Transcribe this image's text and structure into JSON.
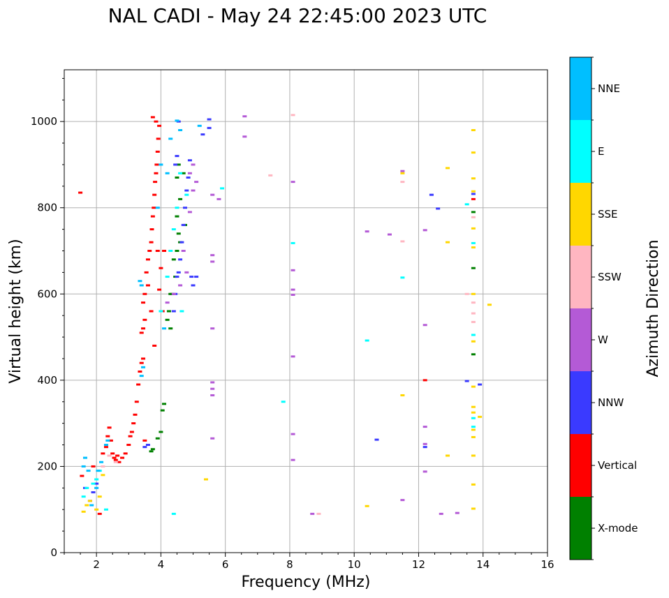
{
  "chart_data": {
    "type": "scatter",
    "title": "NAL CADI - May 24 22:45:00 2023 UTC",
    "xlabel": "Frequency (MHz)",
    "ylabel": "Virtual height (km)",
    "xlim": [
      1,
      16
    ],
    "ylim": [
      0,
      1120
    ],
    "xticks": [
      2,
      4,
      6,
      8,
      10,
      12,
      14,
      16
    ],
    "xtick_labels": [
      "2",
      "4",
      "6",
      "8",
      "10",
      "12",
      "14",
      "16"
    ],
    "yticks": [
      0,
      200,
      400,
      600,
      800,
      1000
    ],
    "ytick_labels": [
      "0",
      "200",
      "400",
      "600",
      "800",
      "1000"
    ],
    "grid": true,
    "colorbar": {
      "label": "Azimuth Direction",
      "categories": [
        {
          "name": "X-mode",
          "color": "#008000"
        },
        {
          "name": "Vertical",
          "color": "#ff0000"
        },
        {
          "name": "NNW",
          "color": "#3a3aff"
        },
        {
          "name": "W",
          "color": "#b45ad6"
        },
        {
          "name": "SSW",
          "color": "#ffb6c1"
        },
        {
          "name": "SSE",
          "color": "#ffd700"
        },
        {
          "name": "E",
          "color": "#00ffff"
        },
        {
          "name": "NNE",
          "color": "#00bfff"
        }
      ]
    },
    "series": [
      {
        "name": "X-mode",
        "points": [
          [
            4.0,
            280
          ],
          [
            4.05,
            330
          ],
          [
            4.1,
            345
          ],
          [
            3.9,
            265
          ],
          [
            3.75,
            240
          ],
          [
            3.7,
            235
          ],
          [
            4.3,
            520
          ],
          [
            4.2,
            540
          ],
          [
            4.25,
            560
          ],
          [
            4.35,
            600
          ],
          [
            4.45,
            640
          ],
          [
            4.5,
            700
          ],
          [
            4.55,
            740
          ],
          [
            4.5,
            780
          ],
          [
            4.6,
            720
          ],
          [
            4.4,
            680
          ],
          [
            4.7,
            880
          ],
          [
            4.75,
            760
          ],
          [
            4.6,
            820
          ],
          [
            4.5,
            870
          ],
          [
            4.55,
            900
          ],
          [
            4.3,
            600
          ],
          [
            13.7,
            790
          ],
          [
            13.7,
            660
          ],
          [
            13.7,
            460
          ]
        ]
      },
      {
        "name": "Vertical",
        "points": [
          [
            1.5,
            835
          ],
          [
            1.55,
            178
          ],
          [
            1.9,
            200
          ],
          [
            2.1,
            90
          ],
          [
            2.2,
            230
          ],
          [
            2.3,
            245
          ],
          [
            2.35,
            270
          ],
          [
            2.4,
            290
          ],
          [
            2.45,
            260
          ],
          [
            2.5,
            230
          ],
          [
            2.55,
            220
          ],
          [
            2.6,
            215
          ],
          [
            2.65,
            225
          ],
          [
            2.7,
            210
          ],
          [
            2.8,
            220
          ],
          [
            2.9,
            230
          ],
          [
            3.0,
            250
          ],
          [
            3.05,
            270
          ],
          [
            3.1,
            280
          ],
          [
            3.15,
            300
          ],
          [
            3.2,
            320
          ],
          [
            3.25,
            350
          ],
          [
            3.3,
            390
          ],
          [
            3.35,
            420
          ],
          [
            3.4,
            440
          ],
          [
            3.45,
            450
          ],
          [
            3.5,
            260
          ],
          [
            3.4,
            510
          ],
          [
            3.45,
            520
          ],
          [
            3.5,
            540
          ],
          [
            3.45,
            580
          ],
          [
            3.5,
            600
          ],
          [
            3.55,
            650
          ],
          [
            3.6,
            680
          ],
          [
            3.65,
            700
          ],
          [
            3.7,
            720
          ],
          [
            3.72,
            750
          ],
          [
            3.75,
            780
          ],
          [
            3.78,
            800
          ],
          [
            3.8,
            830
          ],
          [
            3.82,
            860
          ],
          [
            3.85,
            880
          ],
          [
            3.87,
            900
          ],
          [
            3.9,
            930
          ],
          [
            3.92,
            960
          ],
          [
            3.95,
            990
          ],
          [
            3.8,
            480
          ],
          [
            3.7,
            560
          ],
          [
            3.6,
            620
          ],
          [
            3.9,
            700
          ],
          [
            3.95,
            610
          ],
          [
            4.0,
            660
          ],
          [
            4.05,
            560
          ],
          [
            4.1,
            700
          ],
          [
            3.75,
            1010
          ],
          [
            3.85,
            1000
          ],
          [
            12.2,
            400
          ],
          [
            13.7,
            820
          ]
        ]
      },
      {
        "name": "NNW",
        "points": [
          [
            1.65,
            150
          ],
          [
            1.8,
            120
          ],
          [
            1.9,
            140
          ],
          [
            2.0,
            160
          ],
          [
            3.5,
            245
          ],
          [
            3.6,
            250
          ],
          [
            4.4,
            560
          ],
          [
            4.45,
            600
          ],
          [
            4.5,
            640
          ],
          [
            4.55,
            650
          ],
          [
            4.6,
            680
          ],
          [
            4.65,
            720
          ],
          [
            4.7,
            760
          ],
          [
            4.75,
            800
          ],
          [
            4.8,
            840
          ],
          [
            4.85,
            870
          ],
          [
            4.9,
            910
          ],
          [
            4.95,
            640
          ],
          [
            5.0,
            620
          ],
          [
            5.1,
            640
          ],
          [
            4.45,
            900
          ],
          [
            4.5,
            920
          ],
          [
            4.55,
            1000
          ],
          [
            5.5,
            1005
          ],
          [
            5.5,
            985
          ],
          [
            5.3,
            970
          ],
          [
            10.7,
            262
          ],
          [
            12.2,
            245
          ],
          [
            12.4,
            830
          ],
          [
            12.6,
            798
          ],
          [
            13.5,
            398
          ],
          [
            13.9,
            390
          ],
          [
            13.7,
            832
          ]
        ]
      },
      {
        "name": "W",
        "points": [
          [
            4.2,
            580
          ],
          [
            4.4,
            600
          ],
          [
            4.6,
            620
          ],
          [
            4.7,
            700
          ],
          [
            4.8,
            650
          ],
          [
            4.9,
            790
          ],
          [
            5.0,
            840
          ],
          [
            5.1,
            860
          ],
          [
            4.9,
            880
          ],
          [
            5.0,
            900
          ],
          [
            6.6,
            1012
          ],
          [
            6.6,
            965
          ],
          [
            5.8,
            820
          ],
          [
            5.6,
            830
          ],
          [
            8.1,
            860
          ],
          [
            8.1,
            655
          ],
          [
            8.1,
            610
          ],
          [
            8.1,
            598
          ],
          [
            8.1,
            455
          ],
          [
            8.1,
            275
          ],
          [
            8.1,
            215
          ],
          [
            8.7,
            90
          ],
          [
            10.4,
            745
          ],
          [
            11.1,
            738
          ],
          [
            11.5,
            885
          ],
          [
            11.5,
            122
          ],
          [
            12.2,
            528
          ],
          [
            12.2,
            292
          ],
          [
            12.2,
            252
          ],
          [
            12.2,
            188
          ],
          [
            12.2,
            748
          ],
          [
            12.7,
            90
          ],
          [
            13.2,
            92
          ],
          [
            5.6,
            520
          ],
          [
            5.6,
            395
          ],
          [
            5.6,
            380
          ],
          [
            5.6,
            365
          ],
          [
            5.6,
            265
          ],
          [
            5.6,
            690
          ],
          [
            5.6,
            675
          ]
        ]
      },
      {
        "name": "SSW",
        "points": [
          [
            2.2,
            200
          ],
          [
            2.4,
            225
          ],
          [
            2.6,
            210
          ],
          [
            8.9,
            90
          ],
          [
            7.4,
            875
          ],
          [
            8.1,
            1015
          ],
          [
            11.5,
            860
          ],
          [
            11.5,
            722
          ],
          [
            13.5,
            600
          ],
          [
            13.7,
            778
          ],
          [
            13.7,
            555
          ],
          [
            13.7,
            535
          ],
          [
            13.7,
            580
          ]
        ]
      },
      {
        "name": "SSE",
        "points": [
          [
            1.6,
            95
          ],
          [
            1.7,
            110
          ],
          [
            1.8,
            120
          ],
          [
            2.0,
            100
          ],
          [
            2.1,
            130
          ],
          [
            2.2,
            180
          ],
          [
            5.4,
            170
          ],
          [
            10.4,
            108
          ],
          [
            11.5,
            880
          ],
          [
            11.5,
            365
          ],
          [
            12.9,
            892
          ],
          [
            12.9,
            720
          ],
          [
            12.9,
            225
          ],
          [
            13.7,
            980
          ],
          [
            13.7,
            928
          ],
          [
            13.7,
            868
          ],
          [
            13.7,
            838
          ],
          [
            13.7,
            752
          ],
          [
            13.7,
            708
          ],
          [
            13.7,
            600
          ],
          [
            13.7,
            490
          ],
          [
            13.7,
            385
          ],
          [
            13.7,
            338
          ],
          [
            13.7,
            325
          ],
          [
            13.7,
            285
          ],
          [
            13.7,
            268
          ],
          [
            13.7,
            225
          ],
          [
            13.7,
            158
          ],
          [
            13.7,
            102
          ],
          [
            13.9,
            315
          ],
          [
            14.2,
            575
          ]
        ]
      },
      {
        "name": "E",
        "points": [
          [
            1.6,
            130
          ],
          [
            1.7,
            150
          ],
          [
            1.9,
            160
          ],
          [
            2.0,
            170
          ],
          [
            2.1,
            190
          ],
          [
            2.3,
            100
          ],
          [
            4.0,
            560
          ],
          [
            4.4,
            90
          ],
          [
            4.65,
            560
          ],
          [
            4.2,
            640
          ],
          [
            4.3,
            700
          ],
          [
            4.4,
            750
          ],
          [
            4.5,
            800
          ],
          [
            4.6,
            880
          ],
          [
            4.8,
            830
          ],
          [
            5.9,
            845
          ],
          [
            7.8,
            350
          ],
          [
            8.1,
            718
          ],
          [
            10.4,
            492
          ],
          [
            11.5,
            638
          ],
          [
            13.5,
            808
          ],
          [
            13.7,
            718
          ],
          [
            13.7,
            505
          ],
          [
            13.7,
            312
          ],
          [
            13.7,
            292
          ]
        ]
      },
      {
        "name": "NNE",
        "points": [
          [
            1.6,
            200
          ],
          [
            1.65,
            220
          ],
          [
            1.75,
            190
          ],
          [
            1.85,
            110
          ],
          [
            2.0,
            150
          ],
          [
            2.05,
            190
          ],
          [
            2.15,
            210
          ],
          [
            2.3,
            250
          ],
          [
            2.35,
            260
          ],
          [
            3.4,
            410
          ],
          [
            3.45,
            430
          ],
          [
            3.35,
            630
          ],
          [
            3.4,
            620
          ],
          [
            3.9,
            800
          ],
          [
            4.0,
            900
          ],
          [
            4.1,
            520
          ],
          [
            4.2,
            880
          ],
          [
            4.3,
            960
          ],
          [
            4.5,
            1002
          ],
          [
            4.6,
            980
          ],
          [
            5.2,
            990
          ]
        ]
      }
    ]
  }
}
